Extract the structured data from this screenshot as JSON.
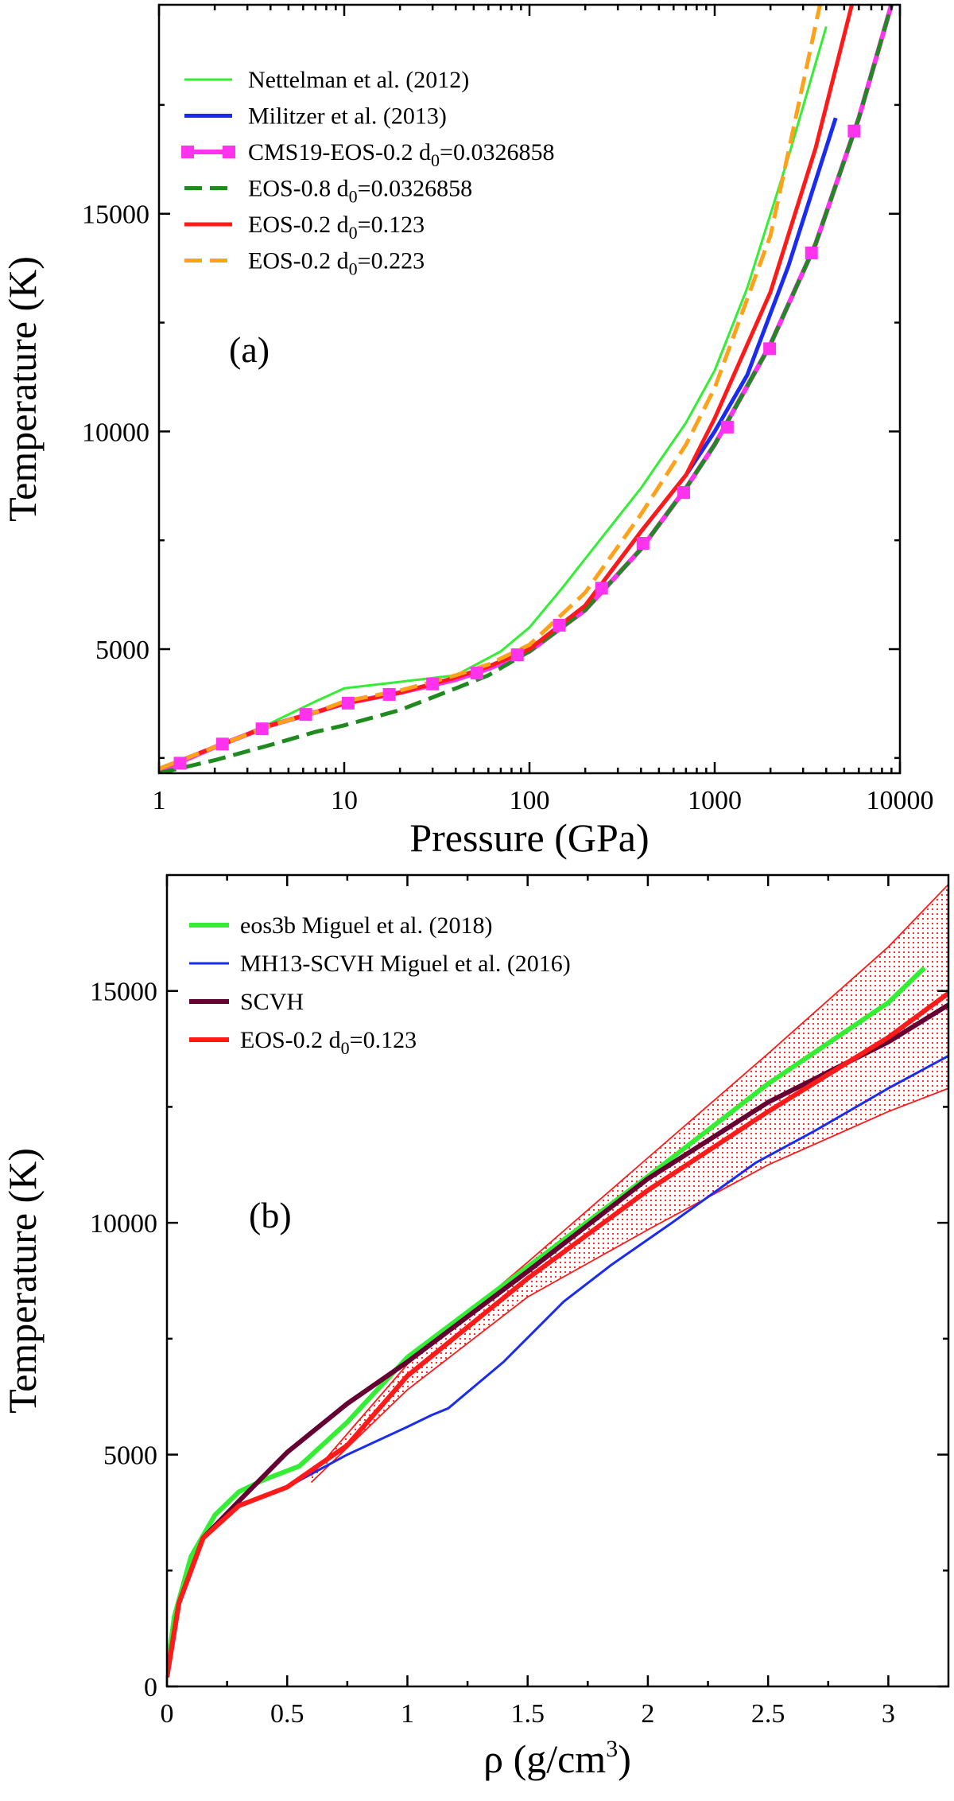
{
  "chart_data": [
    {
      "type": "line",
      "panel_label": "(a)",
      "xlabel": "Pressure (GPa)",
      "ylabel": "Temperature (K)",
      "xscale": "log",
      "xlim": [
        1,
        10000
      ],
      "ylim": [
        2150,
        19800
      ],
      "xticks": [
        1,
        10,
        100,
        1000,
        10000
      ],
      "xtick_labels": [
        "1",
        "10",
        "100",
        "1000",
        "10000"
      ],
      "yticks": [
        5000,
        10000,
        15000
      ],
      "ytick_labels": [
        "5000",
        "10000",
        "15000"
      ],
      "legend_position": "top-left",
      "series": [
        {
          "name": "Nettelman et al. (2012)",
          "legend_text": "Nettelman et al. (2012)",
          "legend_sub": "",
          "legend_post": "",
          "color": "#33ee33",
          "width": 3,
          "dash": "",
          "markers": false,
          "points": [
            [
              1,
              2200
            ],
            [
              2,
              2750
            ],
            [
              4,
              3300
            ],
            [
              7,
              3800
            ],
            [
              10,
              4100
            ],
            [
              20,
              4250
            ],
            [
              40,
              4400
            ],
            [
              70,
              4950
            ],
            [
              100,
              5500
            ],
            [
              150,
              6400
            ],
            [
              250,
              7600
            ],
            [
              400,
              8700
            ],
            [
              700,
              10200
            ],
            [
              1000,
              11400
            ],
            [
              1500,
              13300
            ],
            [
              2500,
              16300
            ],
            [
              4000,
              19300
            ]
          ]
        },
        {
          "name": "Militzer et al. (2013)",
          "legend_text": "Militzer et al. (2013)",
          "legend_sub": "",
          "legend_post": "",
          "color": "#1a2cf0",
          "width": 5,
          "dash": "",
          "markers": false,
          "points": [
            [
              1,
              2250
            ],
            [
              2,
              2750
            ],
            [
              4,
              3250
            ],
            [
              7,
              3550
            ],
            [
              10,
              3750
            ],
            [
              20,
              4000
            ],
            [
              40,
              4300
            ],
            [
              60,
              4600
            ],
            [
              100,
              5000
            ],
            [
              200,
              6000
            ],
            [
              400,
              7700
            ],
            [
              700,
              9000
            ],
            [
              1000,
              10000
            ],
            [
              1500,
              11300
            ],
            [
              2500,
              13800
            ],
            [
              4500,
              17200
            ]
          ]
        },
        {
          "name": "CMS19-EOS-0.2 d0=0.0326858",
          "legend_text": "CMS19-EOS-0.2 d",
          "legend_sub": "0",
          "legend_post": "=0.0326858",
          "color": "#ff33ee",
          "width": 6,
          "dash": "",
          "markers": true,
          "points": [
            [
              1,
              2200
            ],
            [
              2,
              2750
            ],
            [
              4,
              3250
            ],
            [
              7,
              3550
            ],
            [
              10,
              3750
            ],
            [
              20,
              4000
            ],
            [
              40,
              4300
            ],
            [
              60,
              4550
            ],
            [
              100,
              4950
            ],
            [
              200,
              5900
            ],
            [
              400,
              7300
            ],
            [
              700,
              8700
            ],
            [
              1000,
              9700
            ],
            [
              2000,
              12000
            ],
            [
              3500,
              14300
            ],
            [
              6000,
              17200
            ],
            [
              9000,
              19800
            ]
          ],
          "marker_points": [
            [
              1.3,
              2380
            ],
            [
              2.2,
              2820
            ],
            [
              3.6,
              3170
            ],
            [
              6.2,
              3500
            ],
            [
              10.5,
              3760
            ],
            [
              17.5,
              3960
            ],
            [
              30,
              4200
            ],
            [
              52,
              4450
            ],
            [
              86,
              4870
            ],
            [
              145,
              5550
            ],
            [
              245,
              6400
            ],
            [
              410,
              7430
            ],
            [
              680,
              8600
            ],
            [
              1170,
              10100
            ],
            [
              1980,
              11900
            ],
            [
              3330,
              14100
            ],
            [
              5660,
              16900
            ]
          ]
        },
        {
          "name": "EOS-0.8 d0=0.0326858",
          "legend_text": "EOS-0.8 d",
          "legend_sub": "0",
          "legend_post": "=0.0326858",
          "color": "#1f8a1f",
          "width": 5,
          "dash": "22,10",
          "markers": false,
          "points": [
            [
              1,
              2150
            ],
            [
              2,
              2450
            ],
            [
              4,
              2800
            ],
            [
              7,
              3100
            ],
            [
              10,
              3250
            ],
            [
              20,
              3600
            ],
            [
              40,
              4100
            ],
            [
              60,
              4400
            ],
            [
              100,
              4950
            ],
            [
              200,
              5900
            ],
            [
              400,
              7300
            ],
            [
              700,
              8700
            ],
            [
              1000,
              9700
            ],
            [
              2000,
              12000
            ],
            [
              3500,
              14300
            ],
            [
              6000,
              17200
            ],
            [
              9000,
              19800
            ]
          ]
        },
        {
          "name": "EOS-0.2 d0=0.123",
          "legend_text": "EOS-0.2 d",
          "legend_sub": "0",
          "legend_post": "=0.123",
          "color": "#ff1a1a",
          "width": 5,
          "dash": "",
          "markers": false,
          "points": [
            [
              1,
              2250
            ],
            [
              2,
              2750
            ],
            [
              4,
              3250
            ],
            [
              7,
              3550
            ],
            [
              10,
              3750
            ],
            [
              20,
              4000
            ],
            [
              40,
              4350
            ],
            [
              60,
              4600
            ],
            [
              100,
              5000
            ],
            [
              200,
              6000
            ],
            [
              400,
              7700
            ],
            [
              700,
              9000
            ],
            [
              1000,
              10300
            ],
            [
              2000,
              13200
            ],
            [
              3500,
              16500
            ],
            [
              5500,
              19800
            ]
          ]
        },
        {
          "name": "EOS-0.2 d0=0.223",
          "legend_text": "EOS-0.2 d",
          "legend_sub": "0",
          "legend_post": "=0.223",
          "color": "#ffa21a",
          "width": 5,
          "dash": "22,10",
          "markers": false,
          "points": [
            [
              1,
              2250
            ],
            [
              2,
              2750
            ],
            [
              4,
              3250
            ],
            [
              7,
              3550
            ],
            [
              10,
              3800
            ],
            [
              20,
              4050
            ],
            [
              40,
              4400
            ],
            [
              60,
              4650
            ],
            [
              100,
              5100
            ],
            [
              200,
              6300
            ],
            [
              400,
              8100
            ],
            [
              700,
              9700
            ],
            [
              1000,
              11000
            ],
            [
              2000,
              14500
            ],
            [
              3700,
              19800
            ]
          ]
        }
      ]
    },
    {
      "type": "line",
      "panel_label": "(b)",
      "xlabel": "ρ (g/cm",
      "xlabel_sup": "3",
      "xlabel_post": ")",
      "ylabel": "Temperature (K)",
      "xscale": "linear",
      "xlim": [
        0,
        3.25
      ],
      "ylim": [
        0,
        17500
      ],
      "xticks": [
        0,
        0.5,
        1,
        1.5,
        2,
        2.5,
        3
      ],
      "xtick_labels": [
        "0",
        "0.5",
        "1",
        "1.5",
        "2",
        "2.5",
        "3"
      ],
      "yticks": [
        0,
        5000,
        10000,
        15000
      ],
      "ytick_labels": [
        "0",
        "5000",
        "10000",
        "15000"
      ],
      "legend_position": "top-left",
      "band": {
        "color": "#ff1a1a",
        "upper": [
          [
            0.6,
            4550
          ],
          [
            1,
            6950
          ],
          [
            1.5,
            9150
          ],
          [
            2,
            11400
          ],
          [
            2.5,
            13650
          ],
          [
            3,
            15950
          ],
          [
            3.25,
            17300
          ]
        ],
        "lower": [
          [
            0.6,
            4400
          ],
          [
            1,
            6400
          ],
          [
            1.5,
            8400
          ],
          [
            2,
            9850
          ],
          [
            2.5,
            11250
          ],
          [
            3,
            12400
          ],
          [
            3.25,
            12900
          ]
        ]
      },
      "series": [
        {
          "name": "eos3b Miguel et al. (2018)",
          "legend_text": "eos3b Miguel et al. (2018)",
          "legend_sub": "",
          "legend_post": "",
          "color": "#33ee33",
          "width": 6,
          "dash": "",
          "points": [
            [
              0,
              300
            ],
            [
              0.03,
              1500
            ],
            [
              0.1,
              2800
            ],
            [
              0.2,
              3700
            ],
            [
              0.3,
              4200
            ],
            [
              0.4,
              4450
            ],
            [
              0.55,
              4750
            ],
            [
              0.75,
              5700
            ],
            [
              1,
              7100
            ],
            [
              1.5,
              9050
            ],
            [
              2,
              11000
            ],
            [
              2.5,
              13000
            ],
            [
              3,
              14750
            ],
            [
              3.15,
              15500
            ]
          ]
        },
        {
          "name": "MH13-SCVH Miguel et al. (2016)",
          "legend_text": "MH13-SCVH Miguel et al. (2016)",
          "legend_sub": "",
          "legend_post": "",
          "color": "#1a2cf0",
          "width": 3,
          "dash": "",
          "points": [
            [
              0,
              200
            ],
            [
              0.05,
              1800
            ],
            [
              0.15,
              3200
            ],
            [
              0.3,
              3900
            ],
            [
              0.5,
              4300
            ],
            [
              0.75,
              5000
            ],
            [
              1,
              5600
            ],
            [
              1.1,
              5850
            ],
            [
              1.17,
              6000
            ],
            [
              1.4,
              7000
            ],
            [
              1.65,
              8300
            ],
            [
              1.85,
              9100
            ],
            [
              2.1,
              10000
            ],
            [
              2.45,
              11300
            ],
            [
              2.7,
              12000
            ],
            [
              3,
              12900
            ],
            [
              3.25,
              13600
            ]
          ]
        },
        {
          "name": "SCVH",
          "legend_text": "SCVH",
          "legend_sub": "",
          "legend_post": "",
          "color": "#660033",
          "width": 6,
          "dash": "",
          "points": [
            [
              0,
              200
            ],
            [
              0.05,
              1800
            ],
            [
              0.15,
              3200
            ],
            [
              0.3,
              4000
            ],
            [
              0.5,
              5050
            ],
            [
              0.75,
              6100
            ],
            [
              1,
              7000
            ],
            [
              1.5,
              8950
            ],
            [
              2,
              10950
            ],
            [
              2.5,
              12600
            ],
            [
              3,
              13900
            ],
            [
              3.25,
              14700
            ]
          ]
        },
        {
          "name": "EOS-0.2 d0=0.123",
          "legend_text": "EOS-0.2 d",
          "legend_sub": "0",
          "legend_post": "=0.123",
          "color": "#ff1a1a",
          "width": 6,
          "dash": "",
          "points": [
            [
              0,
              200
            ],
            [
              0.05,
              1800
            ],
            [
              0.15,
              3200
            ],
            [
              0.3,
              3900
            ],
            [
              0.5,
              4300
            ],
            [
              0.75,
              5200
            ],
            [
              1,
              6700
            ],
            [
              1.5,
              8800
            ],
            [
              2,
              10700
            ],
            [
              2.5,
              12400
            ],
            [
              3,
              14000
            ],
            [
              3.25,
              14950
            ]
          ]
        }
      ]
    }
  ]
}
